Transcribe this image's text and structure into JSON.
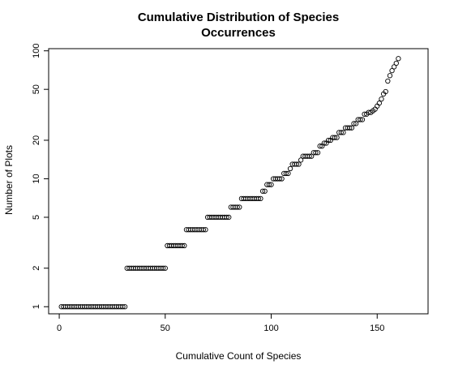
{
  "chart_data": {
    "type": "scatter",
    "title": [
      "Cumulative Distribution of Species",
      "Occurrences"
    ],
    "xlabel": "Cumulative Count of Species",
    "ylabel": "Number of Plots",
    "xlim": [
      -5,
      174
    ],
    "ylim": [
      0.88,
      104
    ],
    "log_y": true,
    "x_ticks": [
      0,
      50,
      100,
      150
    ],
    "y_ticks": [
      1,
      2,
      5,
      10,
      20,
      50,
      100
    ],
    "grid": false,
    "marker": "open-circle",
    "y_runs": [
      {
        "count": 31,
        "y": 1
      },
      {
        "count": 19,
        "y": 2
      },
      {
        "count": 9,
        "y": 3
      },
      {
        "count": 10,
        "y": 4
      },
      {
        "count": 11,
        "y": 5
      },
      {
        "count": 5,
        "y": 6
      },
      {
        "count": 10,
        "y": 7
      },
      {
        "count": 2,
        "y": 8
      },
      {
        "count": 3,
        "y": 9
      },
      {
        "count": 5,
        "y": 10
      },
      {
        "count": 3,
        "y": 11
      },
      {
        "count": 1,
        "y": 12
      },
      {
        "count": 4,
        "y": 13
      },
      {
        "count": 1,
        "y": 14
      },
      {
        "count": 5,
        "y": 15
      },
      {
        "count": 3,
        "y": 16
      },
      {
        "count": 2,
        "y": 18
      },
      {
        "count": 2,
        "y": 19
      },
      {
        "count": 2,
        "y": 20
      },
      {
        "count": 3,
        "y": 21
      },
      {
        "count": 3,
        "y": 23
      },
      {
        "count": 4,
        "y": 25
      },
      {
        "count": 2,
        "y": 27
      },
      {
        "count": 3,
        "y": 29
      },
      {
        "count": 2,
        "y": 32
      },
      {
        "count": 2,
        "y": 33
      },
      {
        "count": 1,
        "y": 34
      },
      {
        "count": 1,
        "y": 35
      },
      {
        "count": 1,
        "y": 37
      },
      {
        "count": 1,
        "y": 39
      },
      {
        "count": 1,
        "y": 42
      },
      {
        "count": 1,
        "y": 46
      },
      {
        "count": 1,
        "y": 48
      },
      {
        "count": 1,
        "y": 58
      },
      {
        "count": 1,
        "y": 64
      },
      {
        "count": 1,
        "y": 70
      },
      {
        "count": 1,
        "y": 75
      },
      {
        "count": 1,
        "y": 80
      },
      {
        "count": 1,
        "y": 87
      }
    ]
  }
}
